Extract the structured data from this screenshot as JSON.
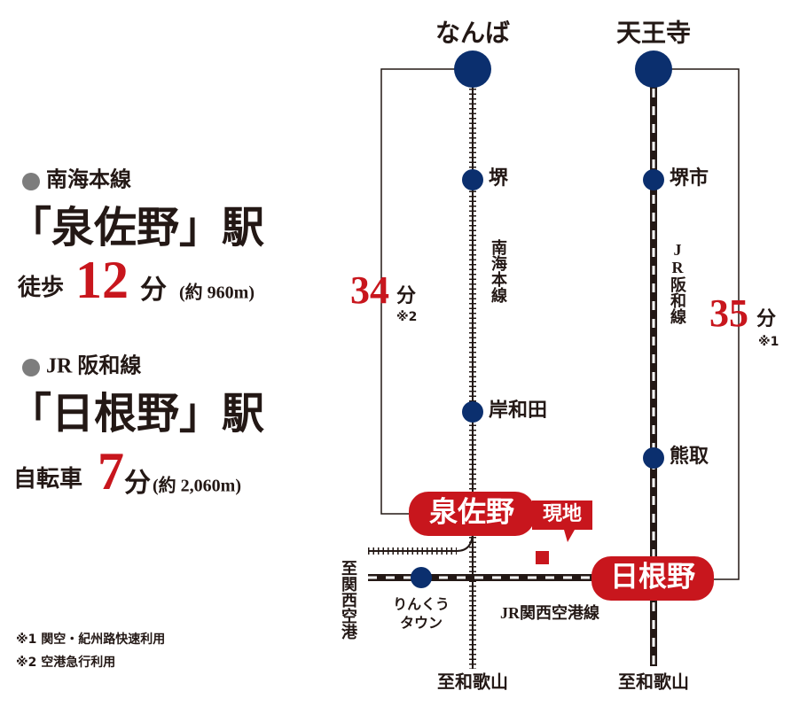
{
  "access": [
    {
      "line": "南海本線",
      "station": "「泉佐野」駅",
      "mode": "徒歩",
      "time": 12,
      "unit": "分",
      "distance": "(約 960m)"
    },
    {
      "line": "JR 阪和線",
      "station": "「日根野」駅",
      "mode": "自転車",
      "time": 7,
      "unit": "分",
      "distance": "(約 2,060m)"
    }
  ],
  "footnotes": [
    "※1 関空・紀州路快速利用",
    "※2 空港急行利用"
  ],
  "map": {
    "termini": [
      "なんば",
      "天王寺"
    ],
    "nankai": {
      "label": "南海本線",
      "stations": [
        "堺",
        "岸和田"
      ],
      "highlight": "泉佐野",
      "time": 34,
      "unit": "分",
      "note": "※2",
      "end": "至和歌山"
    },
    "jr": {
      "label": "JR阪和線",
      "stations": [
        "堺市",
        "熊取"
      ],
      "highlight": "日根野",
      "time": 35,
      "unit": "分",
      "note": "※1",
      "end": "至和歌山"
    },
    "site": "現地",
    "airport_line": {
      "label": "JR関西空港線",
      "station": [
        "りんくう",
        "タウン"
      ],
      "end": "至関西空港"
    }
  }
}
